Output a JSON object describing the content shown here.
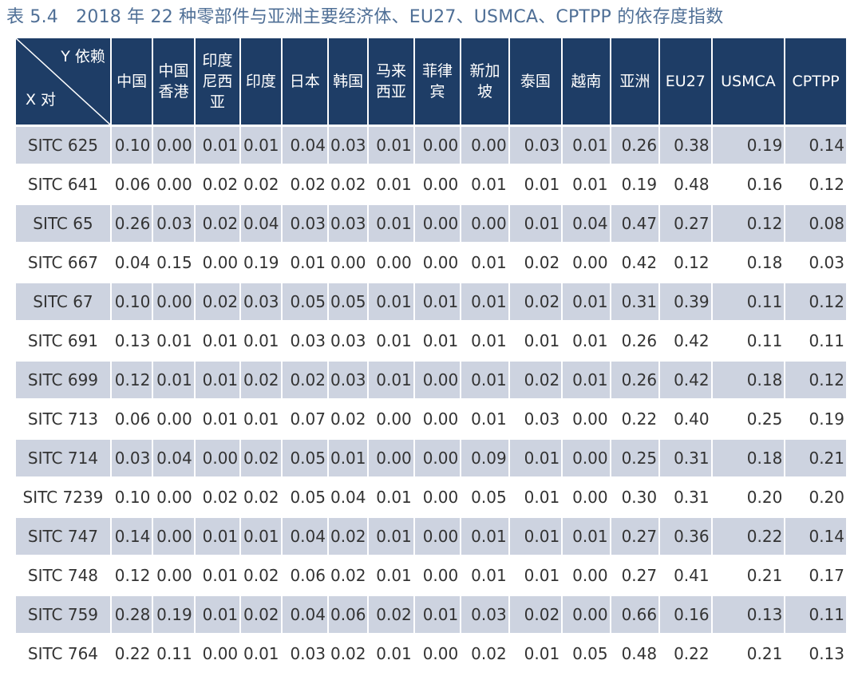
{
  "title": "表 5.4　2018 年 22 种零部件与亚洲主要经济体、EU27、USMCA、CPTPP 的依存度指数",
  "corner": {
    "y_label": "Y 依赖",
    "x_label": "X 对"
  },
  "headers": [
    [
      "中国"
    ],
    [
      "中国",
      "香港"
    ],
    [
      "印度",
      "尼西",
      "亚"
    ],
    [
      "印度"
    ],
    [
      "日本"
    ],
    [
      "韩国"
    ],
    [
      "马来",
      "西亚"
    ],
    [
      "菲律",
      "宾"
    ],
    [
      "新加",
      "坡"
    ],
    [
      "泰国"
    ],
    [
      "越南"
    ],
    [
      "亚洲"
    ],
    [
      "EU27"
    ],
    [
      "USMCA"
    ],
    [
      "CPTPP"
    ]
  ],
  "rows": [
    {
      "label": "SITC 625",
      "values": [
        "0.10",
        "0.00",
        "0.01",
        "0.01",
        "0.04",
        "0.03",
        "0.01",
        "0.00",
        "0.00",
        "0.03",
        "0.01",
        "0.26",
        "0.38",
        "0.19",
        "0.14"
      ]
    },
    {
      "label": "SITC 641",
      "values": [
        "0.06",
        "0.00",
        "0.02",
        "0.02",
        "0.02",
        "0.02",
        "0.01",
        "0.00",
        "0.01",
        "0.01",
        "0.01",
        "0.19",
        "0.48",
        "0.16",
        "0.12"
      ]
    },
    {
      "label": "SITC 65",
      "values": [
        "0.26",
        "0.03",
        "0.02",
        "0.04",
        "0.03",
        "0.03",
        "0.01",
        "0.00",
        "0.00",
        "0.01",
        "0.04",
        "0.47",
        "0.27",
        "0.12",
        "0.08"
      ]
    },
    {
      "label": "SITC 667",
      "values": [
        "0.04",
        "0.15",
        "0.00",
        "0.19",
        "0.01",
        "0.00",
        "0.00",
        "0.00",
        "0.01",
        "0.02",
        "0.00",
        "0.42",
        "0.12",
        "0.18",
        "0.03"
      ]
    },
    {
      "label": "SITC 67",
      "values": [
        "0.10",
        "0.00",
        "0.02",
        "0.03",
        "0.05",
        "0.05",
        "0.01",
        "0.01",
        "0.01",
        "0.02",
        "0.01",
        "0.31",
        "0.39",
        "0.11",
        "0.12"
      ]
    },
    {
      "label": "SITC 691",
      "values": [
        "0.13",
        "0.01",
        "0.01",
        "0.01",
        "0.03",
        "0.03",
        "0.01",
        "0.01",
        "0.01",
        "0.01",
        "0.01",
        "0.26",
        "0.42",
        "0.11",
        "0.11"
      ]
    },
    {
      "label": "SITC 699",
      "values": [
        "0.12",
        "0.01",
        "0.01",
        "0.02",
        "0.02",
        "0.03",
        "0.01",
        "0.00",
        "0.01",
        "0.02",
        "0.01",
        "0.26",
        "0.42",
        "0.18",
        "0.12"
      ]
    },
    {
      "label": "SITC 713",
      "values": [
        "0.06",
        "0.00",
        "0.01",
        "0.01",
        "0.07",
        "0.02",
        "0.00",
        "0.00",
        "0.01",
        "0.03",
        "0.00",
        "0.22",
        "0.40",
        "0.25",
        "0.19"
      ]
    },
    {
      "label": "SITC 714",
      "values": [
        "0.03",
        "0.04",
        "0.00",
        "0.02",
        "0.05",
        "0.01",
        "0.00",
        "0.00",
        "0.09",
        "0.01",
        "0.00",
        "0.25",
        "0.31",
        "0.18",
        "0.21"
      ]
    },
    {
      "label": "SITC 7239",
      "values": [
        "0.10",
        "0.00",
        "0.02",
        "0.02",
        "0.05",
        "0.04",
        "0.01",
        "0.00",
        "0.05",
        "0.01",
        "0.00",
        "0.30",
        "0.31",
        "0.20",
        "0.20"
      ]
    },
    {
      "label": "SITC 747",
      "values": [
        "0.14",
        "0.00",
        "0.01",
        "0.01",
        "0.04",
        "0.02",
        "0.01",
        "0.00",
        "0.01",
        "0.01",
        "0.01",
        "0.27",
        "0.36",
        "0.22",
        "0.14"
      ]
    },
    {
      "label": "SITC 748",
      "values": [
        "0.12",
        "0.00",
        "0.01",
        "0.02",
        "0.06",
        "0.02",
        "0.01",
        "0.00",
        "0.01",
        "0.01",
        "0.00",
        "0.27",
        "0.41",
        "0.21",
        "0.17"
      ]
    },
    {
      "label": "SITC 759",
      "values": [
        "0.28",
        "0.19",
        "0.01",
        "0.02",
        "0.04",
        "0.06",
        "0.02",
        "0.01",
        "0.03",
        "0.02",
        "0.00",
        "0.66",
        "0.16",
        "0.13",
        "0.11"
      ]
    },
    {
      "label": "SITC 764",
      "values": [
        "0.22",
        "0.11",
        "0.00",
        "0.01",
        "0.03",
        "0.02",
        "0.01",
        "0.00",
        "0.02",
        "0.01",
        "0.05",
        "0.48",
        "0.22",
        "0.21",
        "0.13"
      ]
    }
  ]
}
